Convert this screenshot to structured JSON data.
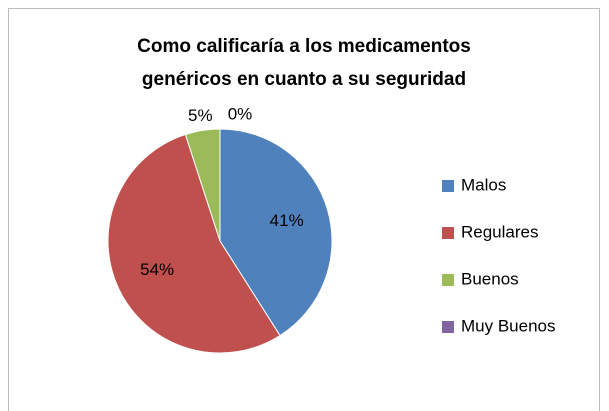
{
  "chart_data": {
    "type": "pie",
    "title": [
      "Como calificaría  a los medicamentos",
      "genéricos en cuanto a su seguridad"
    ],
    "categories": [
      "Malos",
      "Regulares",
      "Buenos",
      "Muy Buenos"
    ],
    "values": [
      41,
      54,
      5,
      0
    ],
    "value_labels": [
      "41%",
      "54%",
      "5%",
      "0%"
    ],
    "colors": [
      "#4f81bd",
      "#c0504d",
      "#9bbb59",
      "#8064a2"
    ],
    "legend": "right"
  }
}
